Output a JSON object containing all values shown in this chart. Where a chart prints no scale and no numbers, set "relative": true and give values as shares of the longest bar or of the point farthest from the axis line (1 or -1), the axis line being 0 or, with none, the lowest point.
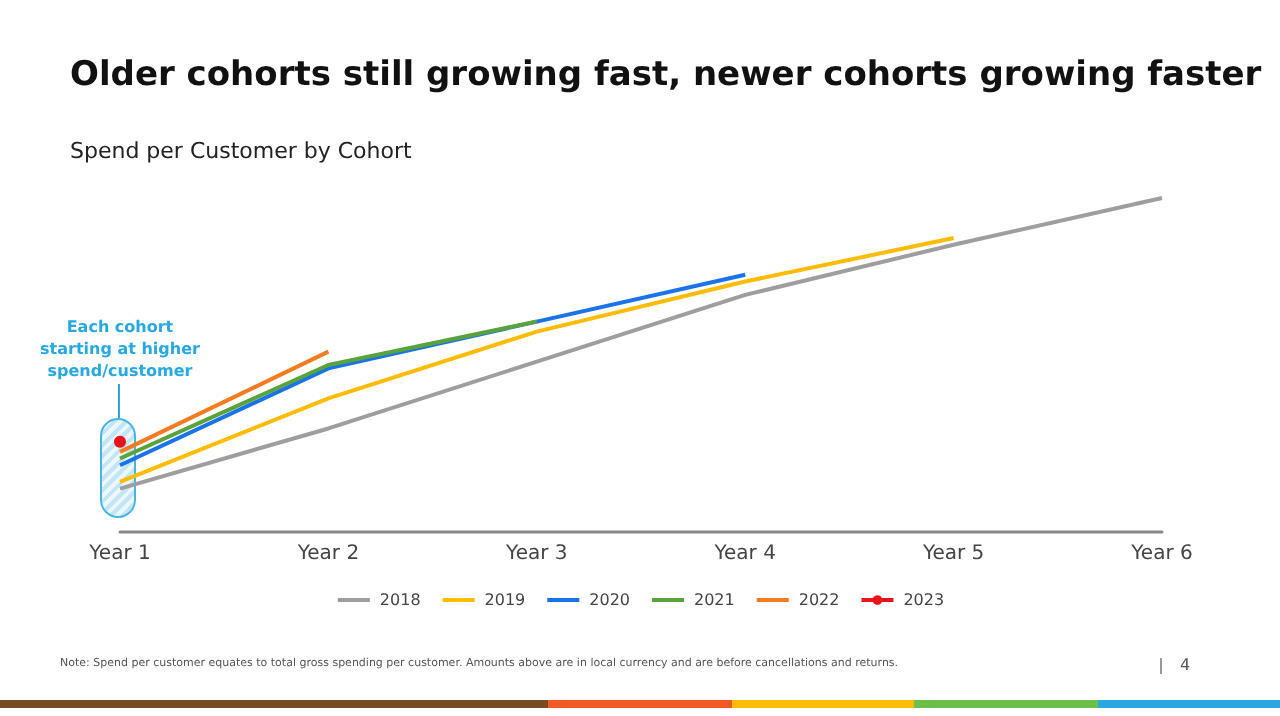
{
  "chart_data": {
    "type": "line",
    "title": "Older cohorts still growing fast, newer cohorts growing faster",
    "subtitle": "Spend per Customer by Cohort",
    "relative": true,
    "categories": [
      "Year 1",
      "Year 2",
      "Year 3",
      "Year 4",
      "Year 5",
      "Year 6"
    ],
    "marker": "none",
    "legend": "bottom",
    "grid": false,
    "series": [
      {
        "name": "2018",
        "color": "#9e9e9e",
        "values": [
          0.13,
          0.31,
          0.51,
          0.71,
          0.86,
          1
        ]
      },
      {
        "name": "2019",
        "color": "#fbbc05",
        "values": [
          0.15,
          0.4,
          0.6,
          0.75,
          0.88,
          null
        ]
      },
      {
        "name": "2020",
        "color": "#1a73e8",
        "values": [
          0.2,
          0.49,
          0.63,
          0.77,
          null,
          null
        ]
      },
      {
        "name": "2021",
        "color": "#5aa33a",
        "values": [
          0.22,
          0.5,
          0.63,
          null,
          null,
          null
        ]
      },
      {
        "name": "2022",
        "color": "#f47b20",
        "values": [
          0.24,
          0.54,
          null,
          null,
          null,
          null
        ]
      },
      {
        "name": "2023",
        "color": "#e8141c",
        "marker": "circle",
        "values": [
          0.27,
          null,
          null,
          null,
          null,
          null
        ]
      }
    ],
    "annotations": [
      "Each cohort starting at higher spend/customer",
      "Note: Spend per customer equates to total gross spending per customer. Amounts above are in local currency and are before cancellations and returns.",
      "4"
    ]
  }
}
